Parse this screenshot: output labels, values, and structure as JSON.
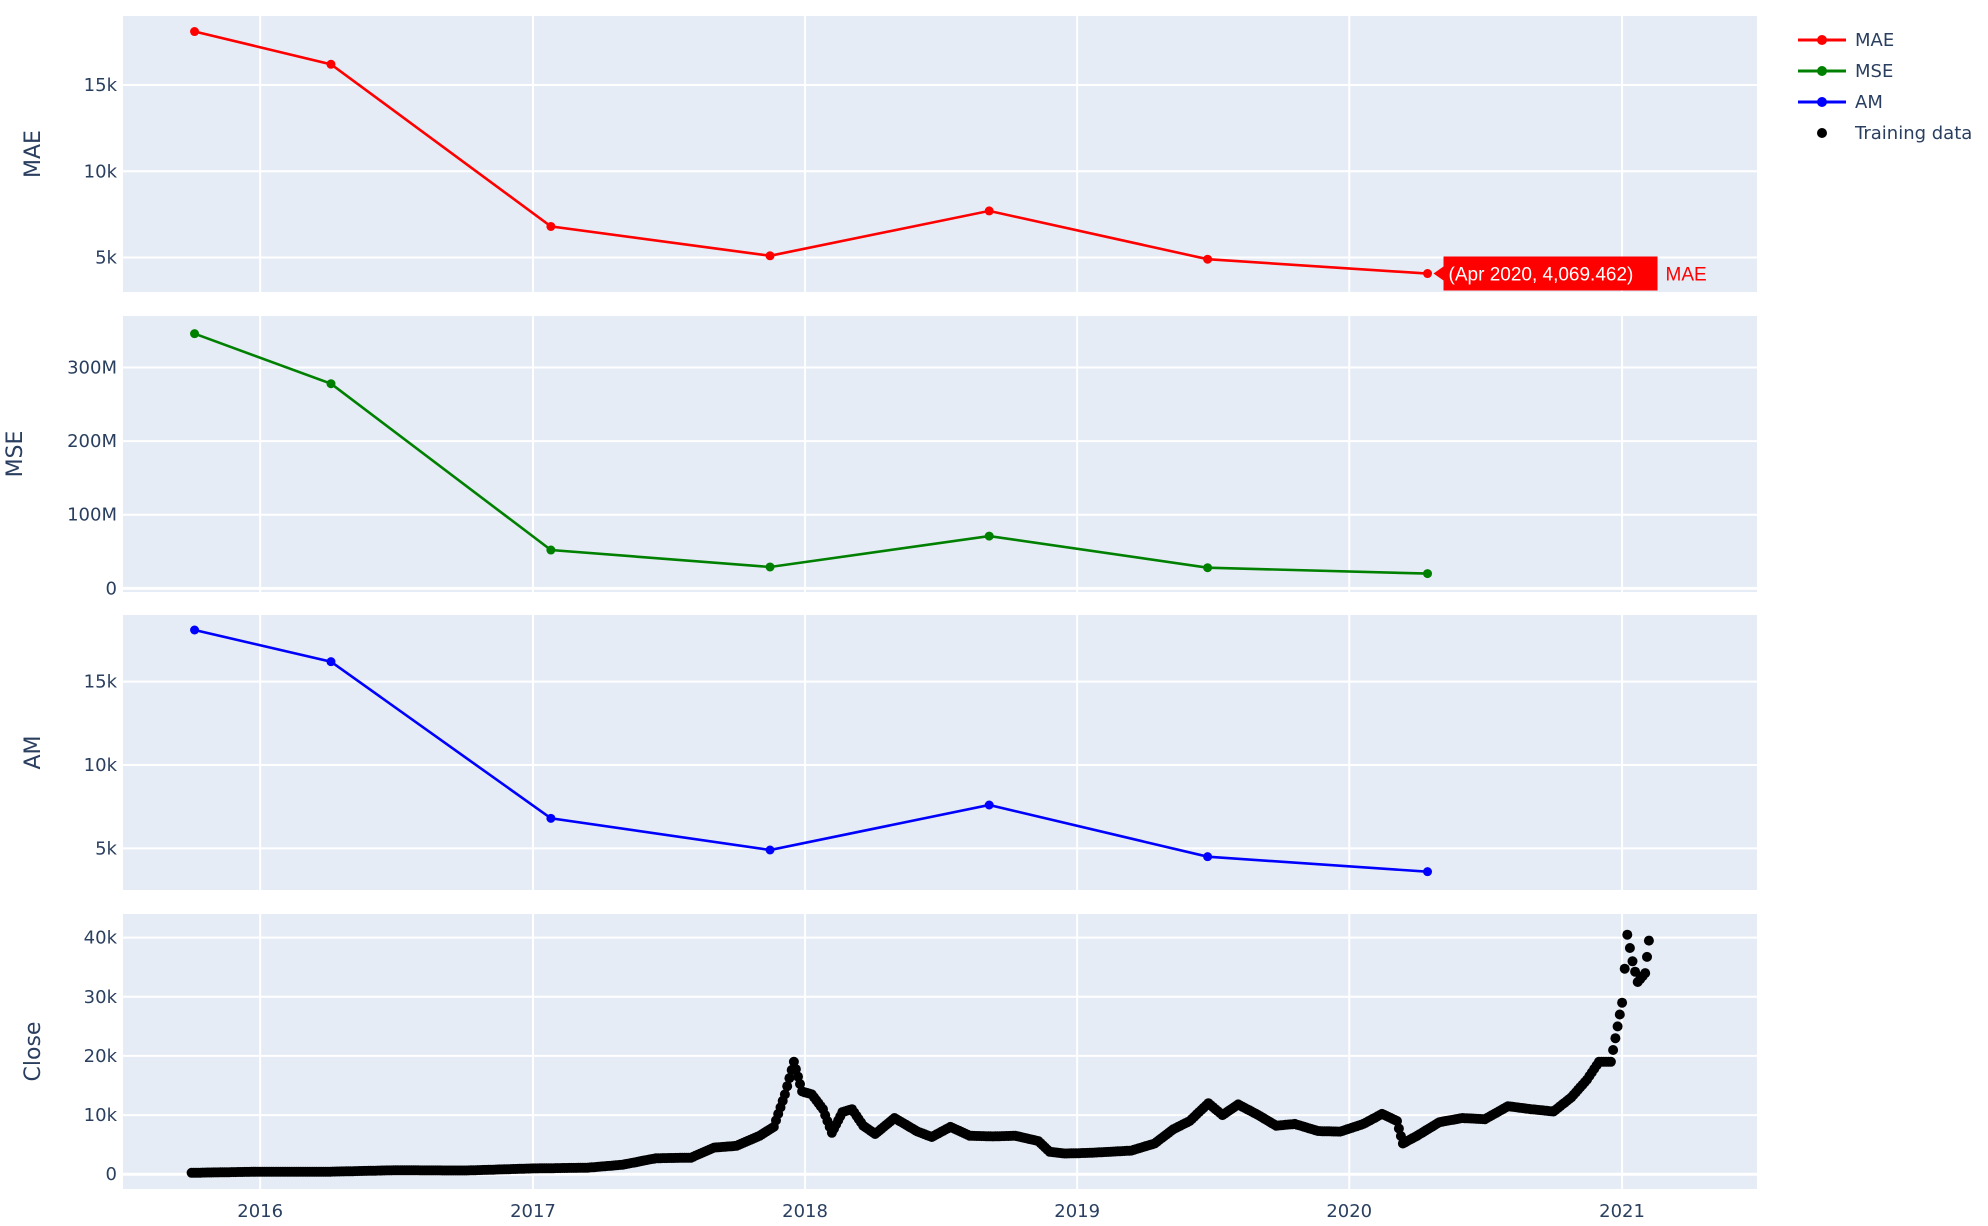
{
  "chart_data": {
    "type": "line",
    "x_axis": {
      "type": "date",
      "range": [
        "2015-07-01",
        "2021-07-01"
      ],
      "tick_labels": [
        "2016",
        "2017",
        "2018",
        "2019",
        "2020",
        "2021"
      ],
      "tick_dates": [
        "2016-01-01",
        "2017-01-01",
        "2018-01-01",
        "2019-01-01",
        "2020-01-01",
        "2021-01-01"
      ]
    },
    "grid": true,
    "legend_placement": "top-right, outside plot",
    "hover_label": {
      "panel": 0,
      "x": "2020-04-15",
      "y": 4069.462,
      "text": "(Apr 2020, 4,069.462)",
      "name": "MAE",
      "color": "#ff0000"
    },
    "subplots": [
      {
        "ylabel": "MAE",
        "yrange": [
          3000,
          19000
        ],
        "ticks": [
          5000,
          10000,
          15000
        ],
        "tick_labels": [
          "5k",
          "10k",
          "15k"
        ],
        "series": [
          {
            "name": "MAE",
            "color": "#ff0000",
            "mode": "lines+markers",
            "x": [
              "2015-10-05",
              "2016-04-05",
              "2017-01-25",
              "2017-11-15",
              "2018-09-05",
              "2019-06-25",
              "2020-04-15"
            ],
            "y": [
              18100,
              16200,
              6800,
              5100,
              7700,
              4900,
              4069.462
            ]
          }
        ]
      },
      {
        "ylabel": "MSE",
        "yrange": [
          -5000000,
          370000000
        ],
        "ticks": [
          0,
          100000000,
          200000000,
          300000000
        ],
        "tick_labels": [
          "0",
          "100M",
          "200M",
          "300M"
        ],
        "series": [
          {
            "name": "MSE",
            "color": "#008000",
            "mode": "lines+markers",
            "x": [
              "2015-10-05",
              "2016-04-05",
              "2017-01-25",
              "2017-11-15",
              "2018-09-05",
              "2019-06-25",
              "2020-04-15"
            ],
            "y": [
              346000000,
              278000000,
              52000000,
              29000000,
              71000000,
              28000000,
              20000000
            ]
          }
        ]
      },
      {
        "ylabel": "AM",
        "yrange": [
          2500,
          19000
        ],
        "ticks": [
          5000,
          10000,
          15000
        ],
        "tick_labels": [
          "5k",
          "10k",
          "15k"
        ],
        "series": [
          {
            "name": "AM",
            "color": "#0000ff",
            "mode": "lines+markers",
            "x": [
              "2015-10-05",
              "2016-04-05",
              "2017-01-25",
              "2017-11-15",
              "2018-09-05",
              "2019-06-25",
              "2020-04-15"
            ],
            "y": [
              18100,
              16200,
              6800,
              4900,
              7600,
              4500,
              3600
            ]
          }
        ]
      },
      {
        "ylabel": "Close",
        "yrange": [
          -2500,
          44000
        ],
        "ticks": [
          0,
          10000,
          20000,
          30000,
          40000
        ],
        "tick_labels": [
          "0",
          "10k",
          "20k",
          "30k",
          "40k"
        ],
        "series": [
          {
            "name": "Training data",
            "color": "#000000",
            "mode": "markers",
            "x": [
              "2015-10-01",
              "2016-01-01",
              "2016-04-01",
              "2016-07-01",
              "2016-10-01",
              "2017-01-01",
              "2017-03-15",
              "2017-05-01",
              "2017-06-15",
              "2017-08-01",
              "2017-09-01",
              "2017-10-01",
              "2017-11-01",
              "2017-11-20",
              "2017-12-05",
              "2017-12-17",
              "2017-12-28",
              "2018-01-10",
              "2018-01-25",
              "2018-02-06",
              "2018-02-20",
              "2018-03-05",
              "2018-03-20",
              "2018-04-05",
              "2018-05-01",
              "2018-06-01",
              "2018-06-20",
              "2018-07-15",
              "2018-08-10",
              "2018-09-10",
              "2018-10-10",
              "2018-11-10",
              "2018-11-25",
              "2018-12-15",
              "2019-01-15",
              "2019-02-15",
              "2019-03-15",
              "2019-04-15",
              "2019-05-10",
              "2019-06-01",
              "2019-06-26",
              "2019-07-15",
              "2019-08-05",
              "2019-09-01",
              "2019-09-25",
              "2019-10-20",
              "2019-11-20",
              "2019-12-20",
              "2020-01-20",
              "2020-02-14",
              "2020-03-05",
              "2020-03-13",
              "2020-04-01",
              "2020-05-01",
              "2020-06-01",
              "2020-07-01",
              "2020-08-01",
              "2020-09-01",
              "2020-10-01",
              "2020-10-25",
              "2020-11-15",
              "2020-12-01",
              "2020-12-17",
              "2021-01-01",
              "2021-01-08",
              "2021-01-15",
              "2021-01-22",
              "2021-02-01",
              "2021-02-06"
            ],
            "y": [
              240,
              430,
              420,
              670,
              620,
              980,
              1100,
              1600,
              2700,
              2800,
              4500,
              4800,
              6500,
              8000,
              13500,
              19000,
              14000,
              13500,
              11000,
              7000,
              10500,
              11000,
              8200,
              6800,
              9500,
              7200,
              6300,
              8000,
              6500,
              6400,
              6500,
              5600,
              3800,
              3500,
              3600,
              3800,
              4000,
              5200,
              7600,
              9000,
              12000,
              10000,
              11800,
              10000,
              8200,
              8500,
              7300,
              7200,
              8500,
              10200,
              9000,
              5200,
              6500,
              8800,
              9500,
              9300,
              11500,
              11000,
              10600,
              13000,
              16000,
              19000,
              19000,
              29000,
              40500,
              36000,
              32500,
              34000,
              39500
            ]
          }
        ]
      }
    ],
    "legend": [
      {
        "label": "MAE",
        "color": "#ff0000",
        "symbol": "line+marker"
      },
      {
        "label": "MSE",
        "color": "#008000",
        "symbol": "line+marker"
      },
      {
        "label": "AM",
        "color": "#0000ff",
        "symbol": "line+marker"
      },
      {
        "label": "Training data",
        "color": "#000000",
        "symbol": "marker"
      }
    ]
  }
}
